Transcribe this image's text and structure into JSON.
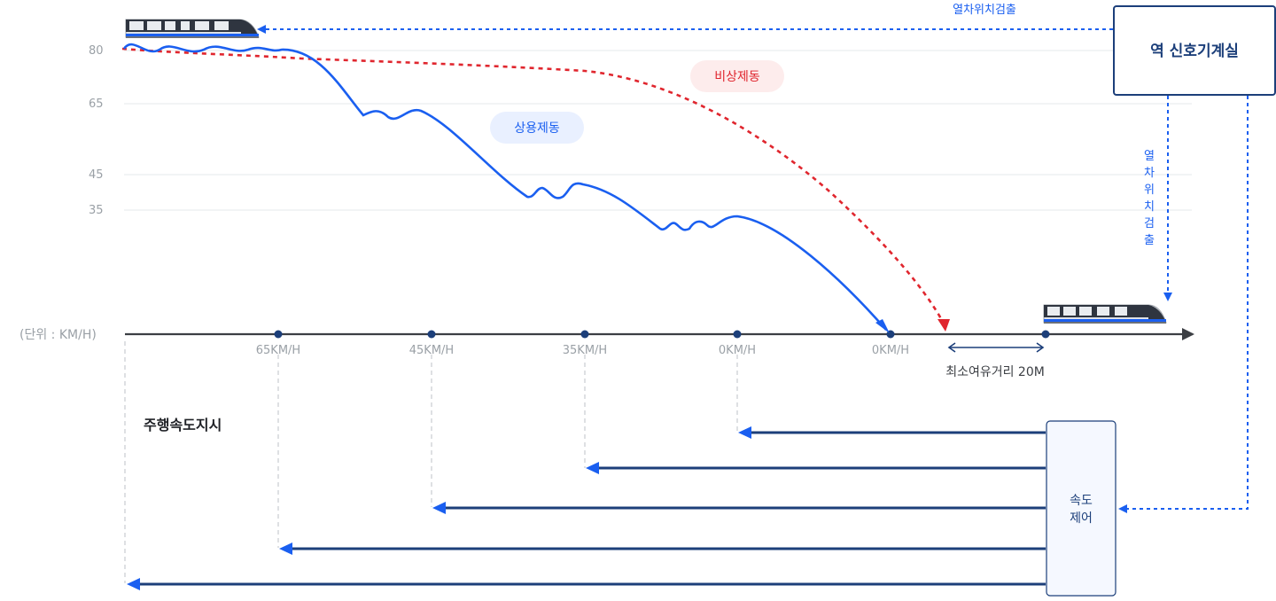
{
  "colors": {
    "blue": "#1a5ff0",
    "navy": "#1c3f7a",
    "red": "#e0262e",
    "grid": "#e6e8eb",
    "axis": "#3c3f44",
    "muted": "#9aa0a6"
  },
  "y_axis": {
    "labels": [
      "80",
      "65",
      "45",
      "35"
    ],
    "unit_label": "(단위 : KM/H)"
  },
  "x_axis": {
    "ticks": [
      "65KM/H",
      "45KM/H",
      "35KM/H",
      "0KM/H",
      "0KM/H"
    ]
  },
  "labels": {
    "commercial_brake": "상용제동",
    "emergency_brake": "비상제동",
    "min_margin": "최소여유거리 20M",
    "running_speed": "주행속도지시",
    "position_detect_top": "열차위치검출",
    "position_detect_vertical": "열차위치검출",
    "station_room": "역 신호기계실",
    "speed_control": "속도\n제어"
  },
  "icons": {
    "train_left": "train-icon",
    "train_right": "train-icon"
  }
}
